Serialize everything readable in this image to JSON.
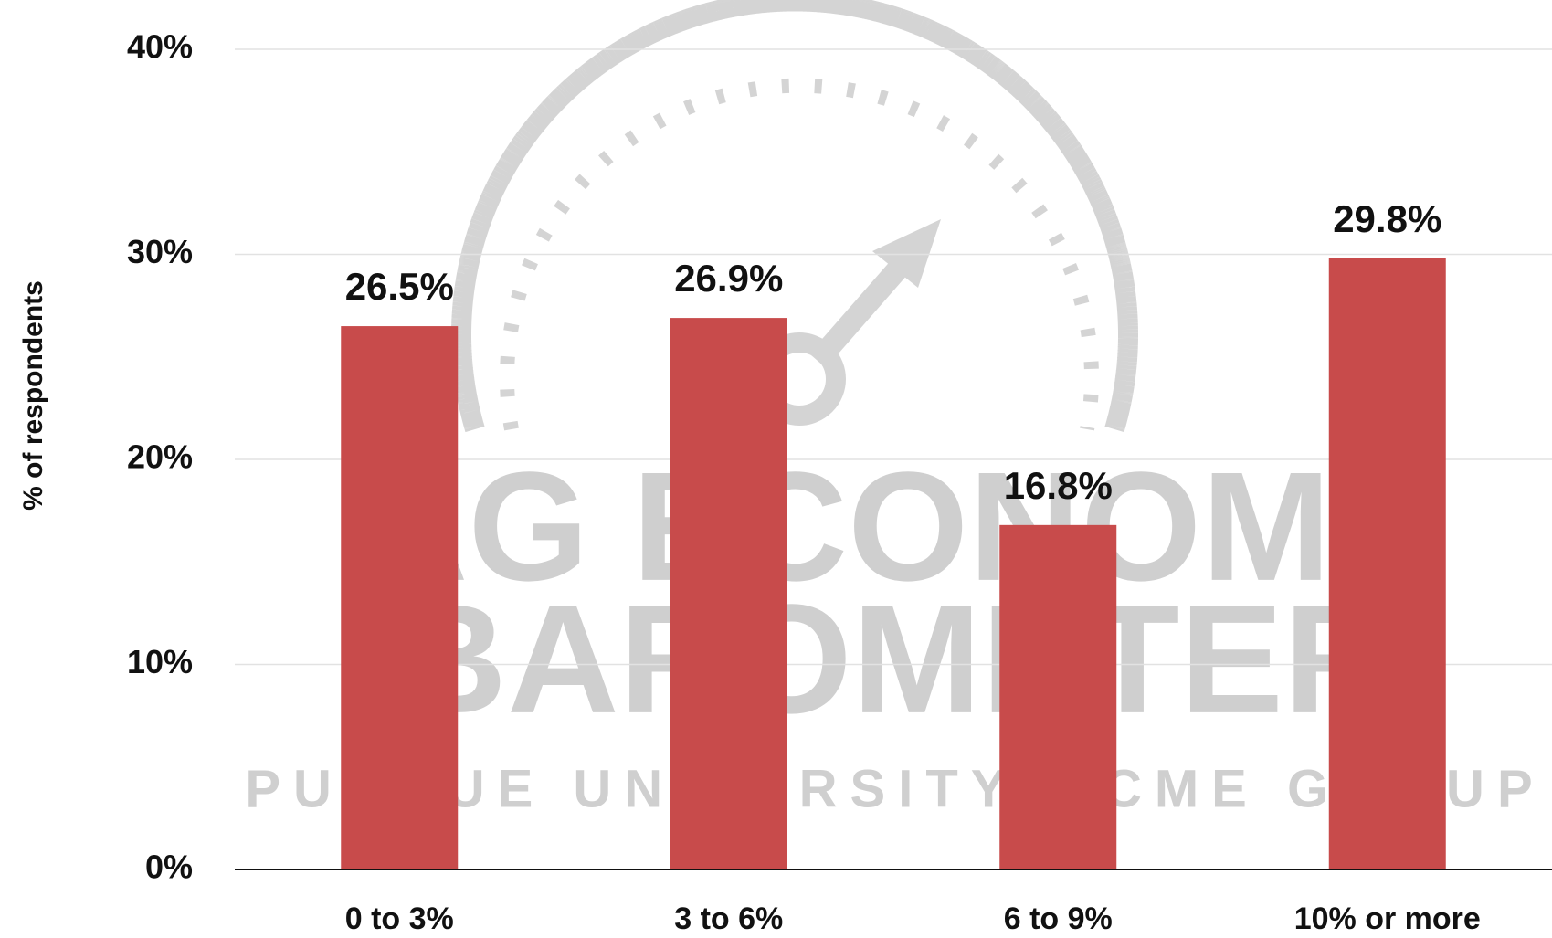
{
  "chart_data": {
    "type": "bar",
    "y_axis_label": "% of respondents",
    "categories": [
      "0 to 3%",
      "3 to 6%",
      "6 to 9%",
      "10% or more"
    ],
    "values": [
      26.5,
      26.9,
      16.8,
      29.8
    ],
    "value_labels": [
      "26.5%",
      "26.9%",
      "16.8%",
      "29.8%"
    ],
    "color": "#c84b4b",
    "ylim": [
      0,
      40
    ],
    "yticks": [
      {
        "value": 0,
        "label": "0%"
      },
      {
        "value": 10,
        "label": "10%"
      },
      {
        "value": 20,
        "label": "20%"
      },
      {
        "value": 30,
        "label": "30%"
      },
      {
        "value": 40,
        "label": "40%"
      }
    ],
    "grid": true,
    "watermark": [
      "AG ECONOMY",
      "BAROMETER",
      "PURDUE UNIVERSITY · CME GROUP"
    ]
  }
}
